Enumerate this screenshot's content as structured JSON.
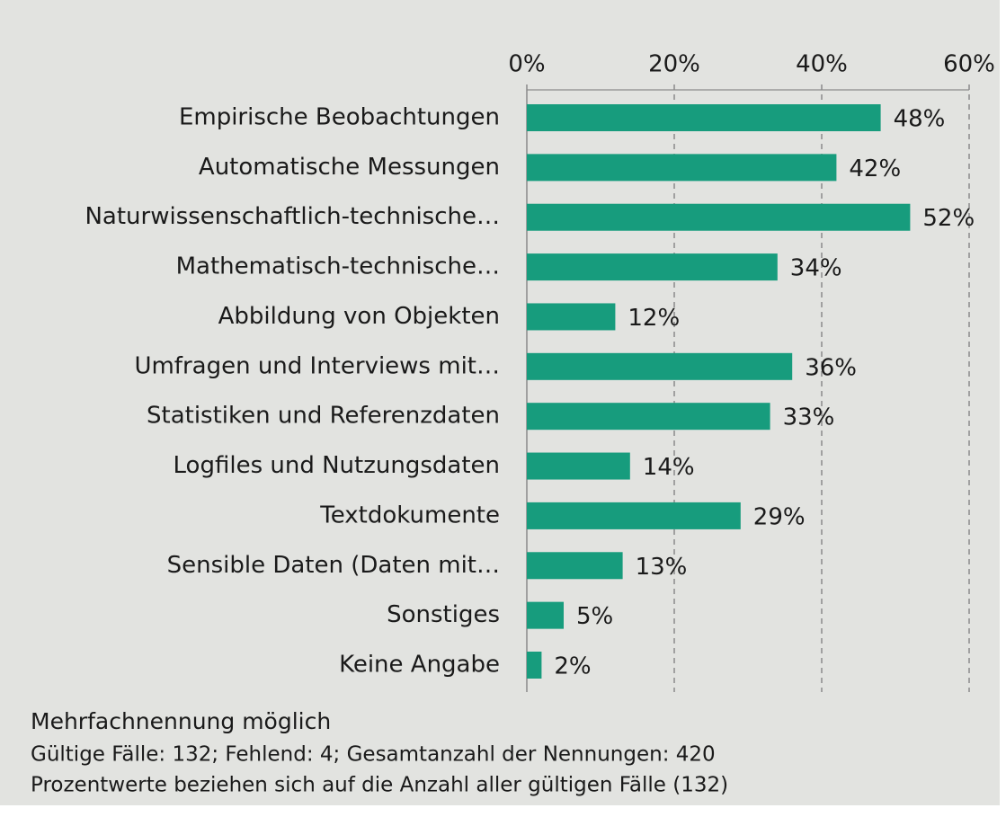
{
  "chart_data": {
    "type": "bar",
    "orientation": "horizontal",
    "categories": [
      "Empirische Beobachtungen",
      "Automatische Messungen",
      "Naturwissenschaftlich-technische…",
      "Mathematisch-technische…",
      "Abbildung von Objekten",
      "Umfragen und Interviews mit…",
      "Statistiken und Referenzdaten",
      "Logfiles und Nutzungsdaten",
      "Textdokumente",
      "Sensible Daten (Daten mit…",
      "Sonstiges",
      "Keine Angabe"
    ],
    "values": [
      48,
      42,
      52,
      34,
      12,
      36,
      33,
      14,
      29,
      13,
      5,
      2
    ],
    "value_labels": [
      "48%",
      "42%",
      "52%",
      "34%",
      "12%",
      "36%",
      "33%",
      "14%",
      "29%",
      "13%",
      "5%",
      "2%"
    ],
    "color": "#179c7d",
    "xlim": [
      0,
      60
    ],
    "xticks": [
      {
        "value": 0,
        "label": "0%"
      },
      {
        "value": 20,
        "label": "20%"
      },
      {
        "value": 40,
        "label": "40%"
      },
      {
        "value": 60,
        "label": "60%"
      }
    ],
    "grid": true,
    "note_title": "Mehrfachnennung möglich",
    "notes": [
      "Gültige Fälle: 132; Fehlend: 4; Gesamtanzahl der Nennungen: 420",
      "Prozentwerte beziehen sich auf die Anzahl aller gültigen Fälle (132)"
    ]
  }
}
